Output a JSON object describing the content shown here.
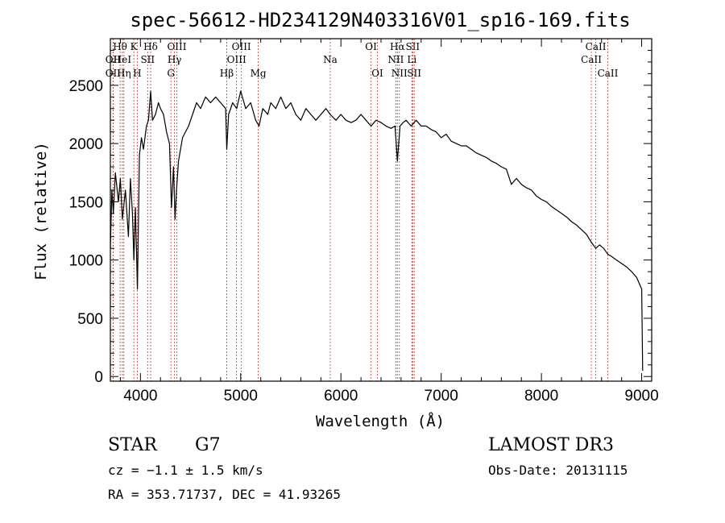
{
  "chart_data": {
    "type": "line",
    "title": "spec-56612-HD234129N403316V01_sp16-169.fits",
    "xlabel": "Wavelength (Å)",
    "ylabel": "Flux (relative)",
    "xlim": [
      3700,
      9100
    ],
    "ylim": [
      -40,
      2900
    ],
    "xticks": [
      4000,
      5000,
      6000,
      7000,
      8000,
      9000
    ],
    "yticks": [
      0,
      500,
      1000,
      1500,
      2000,
      2500
    ],
    "minor_x_step": 200,
    "minor_y_step": 100,
    "series": [
      {
        "name": "spectrum",
        "color": "#000000",
        "x": [
          3700,
          3715,
          3730,
          3750,
          3780,
          3800,
          3820,
          3850,
          3880,
          3900,
          3920,
          3935,
          3950,
          3970,
          3990,
          4010,
          4030,
          4060,
          4080,
          4102,
          4120,
          4150,
          4180,
          4200,
          4230,
          4260,
          4290,
          4310,
          4330,
          4345,
          4360,
          4380,
          4420,
          4450,
          4480,
          4520,
          4560,
          4600,
          4650,
          4700,
          4750,
          4800,
          4850,
          4861,
          4880,
          4920,
          4960,
          5000,
          5050,
          5100,
          5150,
          5183,
          5220,
          5270,
          5300,
          5350,
          5400,
          5450,
          5500,
          5550,
          5600,
          5650,
          5700,
          5750,
          5800,
          5850,
          5893,
          5950,
          6000,
          6050,
          6100,
          6150,
          6200,
          6250,
          6300,
          6350,
          6400,
          6450,
          6500,
          6540,
          6563,
          6590,
          6620,
          6650,
          6700,
          6750,
          6800,
          6850,
          6900,
          6950,
          7000,
          7050,
          7100,
          7150,
          7200,
          7250,
          7300,
          7350,
          7400,
          7450,
          7500,
          7550,
          7600,
          7650,
          7700,
          7750,
          7800,
          7850,
          7900,
          7950,
          8000,
          8050,
          8100,
          8150,
          8200,
          8250,
          8300,
          8350,
          8400,
          8450,
          8500,
          8542,
          8580,
          8620,
          8662,
          8700,
          8750,
          8800,
          8850,
          8900,
          8950,
          9000,
          9010
        ],
        "values": [
          1100,
          1600,
          1400,
          1750,
          1500,
          1700,
          1350,
          1600,
          1200,
          1700,
          1400,
          1000,
          1450,
          750,
          1900,
          2050,
          1950,
          2150,
          2200,
          2450,
          2200,
          2250,
          2350,
          2300,
          2250,
          2100,
          2000,
          1450,
          1800,
          1350,
          1600,
          1850,
          2050,
          2100,
          2150,
          2250,
          2350,
          2300,
          2400,
          2350,
          2400,
          2350,
          2300,
          1950,
          2250,
          2350,
          2300,
          2450,
          2300,
          2350,
          2200,
          2150,
          2300,
          2250,
          2350,
          2300,
          2400,
          2300,
          2350,
          2250,
          2200,
          2300,
          2250,
          2200,
          2250,
          2300,
          2250,
          2200,
          2250,
          2200,
          2180,
          2200,
          2250,
          2200,
          2150,
          2200,
          2180,
          2150,
          2130,
          2150,
          1850,
          2150,
          2180,
          2200,
          2150,
          2200,
          2150,
          2150,
          2120,
          2100,
          2050,
          2080,
          2020,
          2000,
          1980,
          1980,
          1950,
          1920,
          1900,
          1880,
          1850,
          1830,
          1800,
          1780,
          1650,
          1700,
          1650,
          1620,
          1600,
          1550,
          1520,
          1500,
          1460,
          1430,
          1400,
          1370,
          1330,
          1300,
          1260,
          1220,
          1150,
          1100,
          1130,
          1100,
          1050,
          1030,
          1000,
          970,
          940,
          900,
          850,
          750,
          50
        ]
      }
    ],
    "lines": [
      {
        "name": "Hθ",
        "x": 3797,
        "row": 1
      },
      {
        "name": "OII",
        "x": 3727,
        "row": 2
      },
      {
        "name": "OII",
        "x": 3727,
        "row": 3
      },
      {
        "name": "HeI",
        "x": 3820,
        "row": 2
      },
      {
        "name": "Hη",
        "x": 3835,
        "row": 3
      },
      {
        "name": "K",
        "x": 3934,
        "row": 1
      },
      {
        "name": "H",
        "x": 3968,
        "row": 3
      },
      {
        "name": "Hδ",
        "x": 4102,
        "row": 1
      },
      {
        "name": "SII",
        "x": 4072,
        "row": 2
      },
      {
        "name": "OIII",
        "x": 4363,
        "row": 1
      },
      {
        "name": "Hγ",
        "x": 4340,
        "row": 2
      },
      {
        "name": "G",
        "x": 4304,
        "row": 3
      },
      {
        "name": "OIII",
        "x": 5007,
        "row": 1
      },
      {
        "name": "OIII",
        "x": 4959,
        "row": 2
      },
      {
        "name": "Hβ",
        "x": 4861,
        "row": 3
      },
      {
        "name": "Mg",
        "x": 5175,
        "row": 3
      },
      {
        "name": "Na",
        "x": 5893,
        "row": 2
      },
      {
        "name": "OI",
        "x": 6300,
        "row": 1
      },
      {
        "name": "OI",
        "x": 6364,
        "row": 3
      },
      {
        "name": "Hα",
        "x": 6563,
        "row": 1
      },
      {
        "name": "SII",
        "x": 6716,
        "row": 1
      },
      {
        "name": "NII",
        "x": 6548,
        "row": 2
      },
      {
        "name": "Li",
        "x": 6708,
        "row": 2
      },
      {
        "name": "NII",
        "x": 6583,
        "row": 3
      },
      {
        "name": "SII",
        "x": 6731,
        "row": 3
      },
      {
        "name": "CaII",
        "x": 8542,
        "row": 1
      },
      {
        "name": "CaII",
        "x": 8498,
        "row": 2
      },
      {
        "name": "CaII",
        "x": 8662,
        "row": 3
      }
    ]
  },
  "info": {
    "object_type": "STAR",
    "spectral_class": "G7",
    "survey": "LAMOST DR3",
    "redshift": "cz = −1.1 ± 1.5 km/s",
    "obs_date": "Obs-Date: 20131115",
    "coordinates": "RA = 353.71737, DEC =  41.93265"
  },
  "colors": {
    "axis": "#000000",
    "spectrum": "#000000",
    "line_marker": "#c0392b",
    "background": "#ffffff"
  }
}
